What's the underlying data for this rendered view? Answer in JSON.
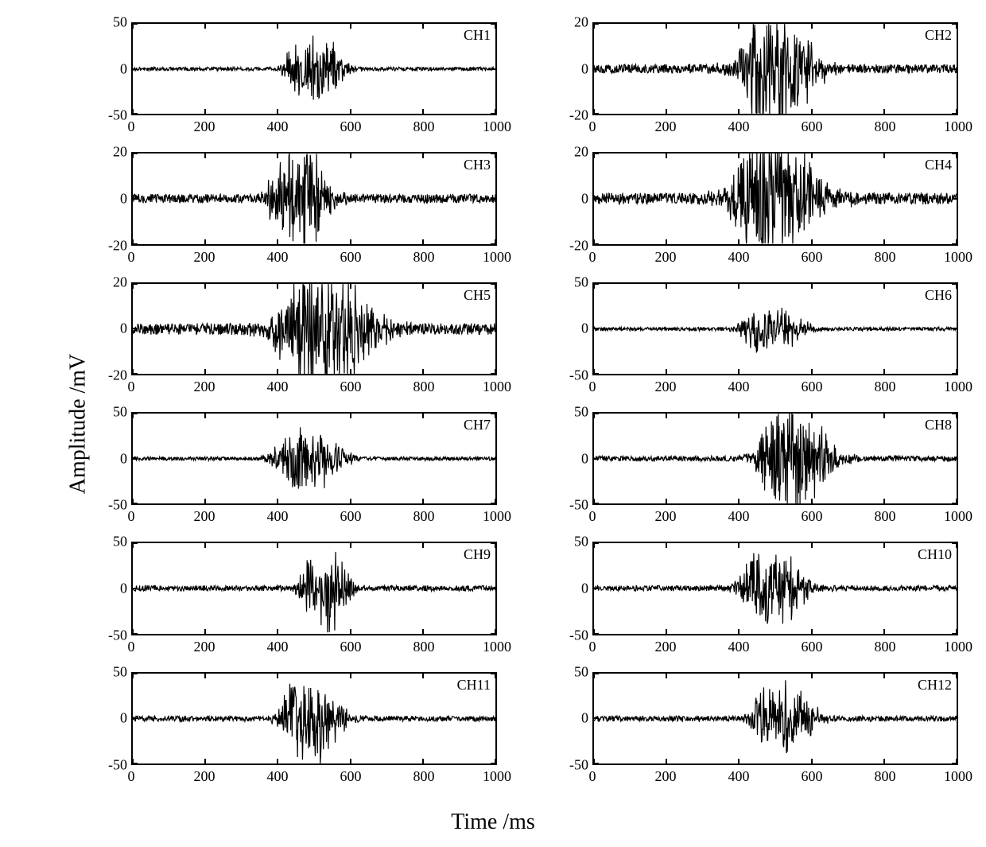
{
  "figure": {
    "type": "waveform-grid",
    "rows": 6,
    "cols": 2,
    "background_color": "#ffffff",
    "border_color": "#000000",
    "signal_color": "#000000",
    "line_width": 1.2,
    "ylabel": "Amplitude /mV",
    "xlabel": "Time /ms",
    "ylabel_fontsize": 28,
    "xlabel_fontsize": 28,
    "tick_fontsize": 18,
    "channel_label_fontsize": 18,
    "font_family": "Times New Roman",
    "xlim": [
      0,
      1000
    ],
    "xtick_step": 200,
    "xticks": [
      0,
      200,
      400,
      600,
      800,
      1000
    ]
  },
  "channels": [
    {
      "label": "CH1",
      "ylim": [
        -50,
        50
      ],
      "yticks": [
        -50,
        0,
        50
      ],
      "burst_center": 520,
      "burst_width": 160,
      "peak_amp": 28,
      "noise_amp": 2,
      "seed": 1
    },
    {
      "label": "CH2",
      "ylim": [
        -20,
        20
      ],
      "yticks": [
        -20,
        0,
        20
      ],
      "burst_center": 520,
      "burst_width": 260,
      "peak_amp": 17,
      "noise_amp": 2,
      "seed": 2
    },
    {
      "label": "CH3",
      "ylim": [
        -20,
        20
      ],
      "yticks": [
        -20,
        0,
        20
      ],
      "burst_center": 480,
      "burst_width": 180,
      "peak_amp": 16,
      "noise_amp": 2,
      "seed": 3
    },
    {
      "label": "CH4",
      "ylim": [
        -20,
        20
      ],
      "yticks": [
        -20,
        0,
        20
      ],
      "burst_center": 520,
      "burst_width": 320,
      "peak_amp": 17,
      "noise_amp": 2.5,
      "seed": 4
    },
    {
      "label": "CH5",
      "ylim": [
        -20,
        20
      ],
      "yticks": [
        -20,
        0,
        20
      ],
      "burst_center": 550,
      "burst_width": 360,
      "peak_amp": 17,
      "noise_amp": 2.5,
      "seed": 5
    },
    {
      "label": "CH6",
      "ylim": [
        -50,
        50
      ],
      "yticks": [
        -50,
        0,
        50
      ],
      "burst_center": 510,
      "burst_width": 200,
      "peak_amp": 18,
      "noise_amp": 2,
      "seed": 6
    },
    {
      "label": "CH7",
      "ylim": [
        -50,
        50
      ],
      "yticks": [
        -50,
        0,
        50
      ],
      "burst_center": 500,
      "burst_width": 220,
      "peak_amp": 25,
      "noise_amp": 2,
      "seed": 7
    },
    {
      "label": "CH8",
      "ylim": [
        -50,
        50
      ],
      "yticks": [
        -50,
        0,
        50
      ],
      "burst_center": 570,
      "burst_width": 240,
      "peak_amp": 40,
      "noise_amp": 3,
      "seed": 8
    },
    {
      "label": "CH9",
      "ylim": [
        -50,
        50
      ],
      "yticks": [
        -50,
        0,
        50
      ],
      "burst_center": 550,
      "burst_width": 120,
      "peak_amp": 42,
      "noise_amp": 3,
      "seed": 9
    },
    {
      "label": "CH10",
      "ylim": [
        -50,
        50
      ],
      "yticks": [
        -50,
        0,
        50
      ],
      "burst_center": 510,
      "burst_width": 200,
      "peak_amp": 30,
      "noise_amp": 3,
      "seed": 10
    },
    {
      "label": "CH11",
      "ylim": [
        -50,
        50
      ],
      "yticks": [
        -50,
        0,
        50
      ],
      "burst_center": 510,
      "burst_width": 180,
      "peak_amp": 35,
      "noise_amp": 3,
      "seed": 11
    },
    {
      "label": "CH12",
      "ylim": [
        -50,
        50
      ],
      "yticks": [
        -50,
        0,
        50
      ],
      "burst_center": 540,
      "burst_width": 180,
      "peak_amp": 32,
      "noise_amp": 3,
      "seed": 12
    }
  ]
}
